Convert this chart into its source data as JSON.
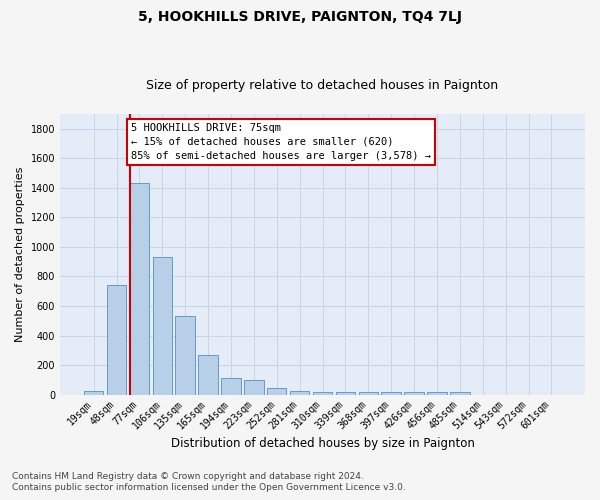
{
  "title": "5, HOOKHILLS DRIVE, PAIGNTON, TQ4 7LJ",
  "subtitle": "Size of property relative to detached houses in Paignton",
  "xlabel": "Distribution of detached houses by size in Paignton",
  "ylabel": "Number of detached properties",
  "footnote1": "Contains HM Land Registry data © Crown copyright and database right 2024.",
  "footnote2": "Contains public sector information licensed under the Open Government Licence v3.0.",
  "bar_labels": [
    "19sqm",
    "48sqm",
    "77sqm",
    "106sqm",
    "135sqm",
    "165sqm",
    "194sqm",
    "223sqm",
    "252sqm",
    "281sqm",
    "310sqm",
    "339sqm",
    "368sqm",
    "397sqm",
    "426sqm",
    "456sqm",
    "485sqm",
    "514sqm",
    "543sqm",
    "572sqm",
    "601sqm"
  ],
  "bar_values": [
    25,
    740,
    1430,
    935,
    530,
    270,
    110,
    100,
    45,
    25,
    15,
    15,
    15,
    15,
    15,
    15,
    20,
    0,
    0,
    0,
    0
  ],
  "bar_color": "#b8cfe8",
  "bar_edge_color": "#6699cc",
  "red_line_color": "#cc0000",
  "red_line_index": 2,
  "annotation_text": "5 HOOKHILLS DRIVE: 75sqm\n← 15% of detached houses are smaller (620)\n85% of semi-detached houses are larger (3,578) →",
  "annotation_box_color": "#ffffff",
  "annotation_box_edge": "#cc0000",
  "ylim": [
    0,
    1900
  ],
  "yticks": [
    0,
    200,
    400,
    600,
    800,
    1000,
    1200,
    1400,
    1600,
    1800
  ],
  "grid_color": "#c8d4e8",
  "bg_color": "#e4ecf7",
  "fig_bg_color": "#f5f5f5",
  "title_fontsize": 10,
  "subtitle_fontsize": 9,
  "xlabel_fontsize": 8.5,
  "ylabel_fontsize": 8,
  "tick_fontsize": 7,
  "annotation_fontsize": 7.5,
  "footnote_fontsize": 6.5
}
